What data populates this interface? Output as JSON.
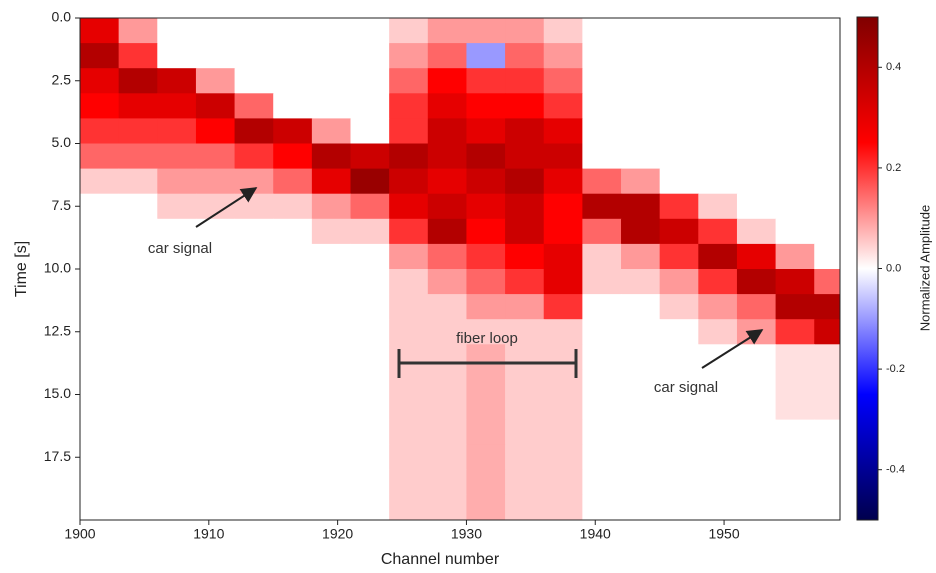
{
  "chart_data": {
    "type": "heatmap",
    "xlabel": "Channel number",
    "ylabel": "Time [s]",
    "colorbar_label": "Normalized Amplitude",
    "colormap": "seismic",
    "clim": [
      -0.5,
      0.5
    ],
    "cticks": [
      0.4,
      0.2,
      {
        "value": 0,
        "label": "0.0"
      },
      -0.2,
      -0.4
    ],
    "xlim": [
      1900,
      1959
    ],
    "xticks": [
      1900,
      1910,
      1920,
      1930,
      1940,
      1950
    ],
    "ylim": [
      0,
      20
    ],
    "y_inverted": true,
    "yticks": [
      {
        "value": 0,
        "label": "0.0"
      },
      2.5,
      {
        "value": 5,
        "label": "5.0"
      },
      7.5,
      {
        "value": 10,
        "label": "10.0"
      },
      12.5,
      {
        "value": 15,
        "label": "15.0"
      },
      17.5
    ],
    "annotations": [
      "car signal",
      "fiber loop",
      "car signal"
    ],
    "x": [
      1901.5,
      1904.5,
      1907.5,
      1910.5,
      1913.5,
      1916.5,
      1919.5,
      1922.5,
      1925.5,
      1928.5,
      1931.5,
      1934.5,
      1937.5,
      1940.5,
      1943.5,
      1946.5,
      1949.5,
      1952.5,
      1955.5,
      1958.5
    ],
    "y": [
      0.5,
      1.5,
      2.5,
      3.5,
      4.5,
      5.5,
      6.5,
      7.5,
      8.5,
      9.5,
      10.5,
      11.5,
      12.5,
      13.5,
      14.5,
      15.5,
      16.5,
      17.5,
      18.5,
      19.5
    ],
    "z": [
      [
        0.3,
        0.1,
        0,
        0,
        0,
        0,
        0,
        0,
        0.05,
        0.1,
        0.1,
        0.1,
        0.05,
        0,
        0,
        0,
        0,
        0,
        0,
        0
      ],
      [
        0.4,
        0.2,
        0,
        0,
        0,
        0,
        0,
        0,
        0.1,
        0.15,
        -0.1,
        0.15,
        0.1,
        0,
        0,
        0,
        0,
        0,
        0,
        0
      ],
      [
        0.3,
        0.4,
        0.35,
        0.1,
        0,
        0,
        0,
        0,
        0.15,
        0.25,
        0.2,
        0.2,
        0.15,
        0,
        0,
        0,
        0,
        0,
        0,
        0
      ],
      [
        0.25,
        0.3,
        0.3,
        0.35,
        0.15,
        0,
        0,
        0,
        0.2,
        0.3,
        0.25,
        0.25,
        0.2,
        0,
        0,
        0,
        0,
        0,
        0,
        0
      ],
      [
        0.2,
        0.2,
        0.2,
        0.25,
        0.4,
        0.35,
        0.1,
        0,
        0.2,
        0.35,
        0.3,
        0.35,
        0.3,
        0,
        0,
        0,
        0,
        0,
        0,
        0
      ],
      [
        0.15,
        0.15,
        0.15,
        0.15,
        0.2,
        0.25,
        0.4,
        0.35,
        0.4,
        0.35,
        0.4,
        0.35,
        0.35,
        0,
        0,
        0,
        0,
        0,
        0,
        0
      ],
      [
        0.05,
        0.05,
        0.1,
        0.1,
        0.1,
        0.15,
        0.3,
        0.45,
        0.35,
        0.3,
        0.35,
        0.4,
        0.3,
        0.15,
        0.1,
        0,
        0,
        0,
        0,
        0
      ],
      [
        0,
        0,
        0.05,
        0.05,
        0.05,
        0.05,
        0.1,
        0.15,
        0.3,
        0.35,
        0.3,
        0.35,
        0.25,
        0.4,
        0.4,
        0.2,
        0.05,
        0,
        0,
        0
      ],
      [
        0,
        0,
        0,
        0,
        0,
        0,
        0.05,
        0.05,
        0.2,
        0.4,
        0.25,
        0.35,
        0.25,
        0.15,
        0.4,
        0.35,
        0.2,
        0.05,
        0,
        0
      ],
      [
        0,
        0,
        0,
        0,
        0,
        0,
        0,
        0,
        0.1,
        0.15,
        0.2,
        0.25,
        0.3,
        0.05,
        0.1,
        0.2,
        0.4,
        0.3,
        0.1,
        0
      ],
      [
        0,
        0,
        0,
        0,
        0,
        0,
        0,
        0,
        0.05,
        0.1,
        0.15,
        0.2,
        0.3,
        0.05,
        0.05,
        0.1,
        0.2,
        0.4,
        0.35,
        0.15
      ],
      [
        0,
        0,
        0,
        0,
        0,
        0,
        0,
        0,
        0.05,
        0.05,
        0.1,
        0.1,
        0.2,
        0,
        0,
        0.05,
        0.1,
        0.15,
        0.4,
        0.4
      ],
      [
        0,
        0,
        0,
        0,
        0,
        0,
        0,
        0,
        0.05,
        0.05,
        0.05,
        0.05,
        0.05,
        0,
        0,
        0,
        0.05,
        0.1,
        0.2,
        0.35
      ],
      [
        0,
        0,
        0,
        0,
        0,
        0,
        0,
        0,
        0.05,
        0.05,
        0.08,
        0.05,
        0.05,
        0,
        0,
        0,
        0,
        0,
        0.03,
        0.03
      ],
      [
        0,
        0,
        0,
        0,
        0,
        0,
        0,
        0,
        0.05,
        0.05,
        0.08,
        0.05,
        0.05,
        0,
        0,
        0,
        0,
        0,
        0.03,
        0.03
      ],
      [
        0,
        0,
        0,
        0,
        0,
        0,
        0,
        0,
        0.05,
        0.05,
        0.08,
        0.05,
        0.05,
        0,
        0,
        0,
        0,
        0,
        0.03,
        0.03
      ],
      [
        0,
        0,
        0,
        0,
        0,
        0,
        0,
        0,
        0.05,
        0.05,
        0.08,
        0.05,
        0.05,
        0,
        0,
        0,
        0,
        0,
        0,
        0
      ],
      [
        0,
        0,
        0,
        0,
        0,
        0,
        0,
        0,
        0.05,
        0.05,
        0.08,
        0.05,
        0.05,
        0,
        0,
        0,
        0,
        0,
        0,
        0
      ],
      [
        0,
        0,
        0,
        0,
        0,
        0,
        0,
        0,
        0.05,
        0.05,
        0.08,
        0.05,
        0.05,
        0,
        0,
        0,
        0,
        0,
        0,
        0
      ],
      [
        0,
        0,
        0,
        0,
        0,
        0,
        0,
        0,
        0.05,
        0.05,
        0.08,
        0.05,
        0.05,
        0,
        0,
        0,
        0,
        0,
        0,
        0
      ]
    ]
  }
}
